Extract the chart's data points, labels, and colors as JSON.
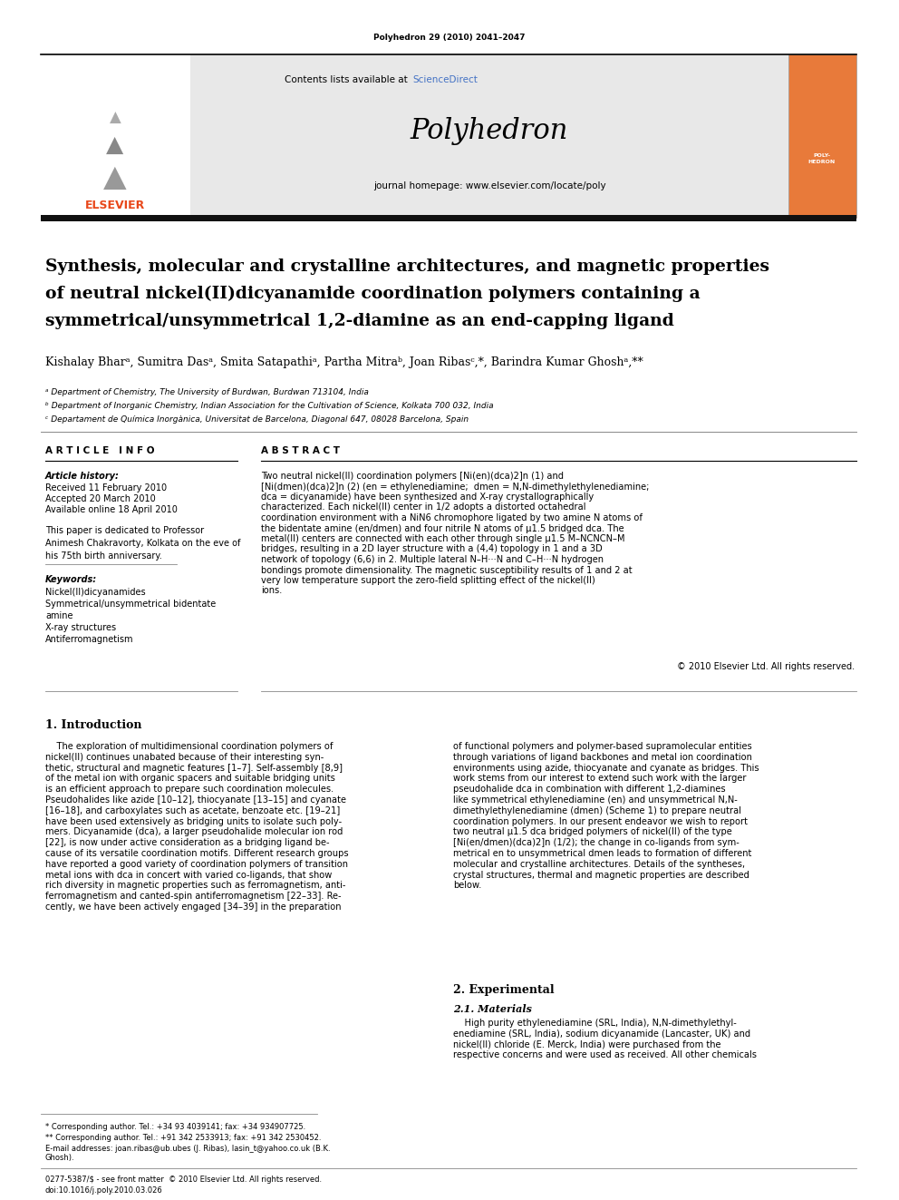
{
  "page_width": 9.92,
  "page_height": 13.23,
  "bg_color": "#ffffff",
  "journal_ref": "Polyhedron 29 (2010) 2041–2047",
  "contents_text": "Contents lists available at ",
  "sciencedirect_text": "ScienceDirect",
  "sciencedirect_color": "#4472c4",
  "journal_name": "Polyhedron",
  "journal_homepage": "journal homepage: www.elsevier.com/locate/poly",
  "header_bg": "#e8e8e8",
  "orange_box_color": "#e87a3a",
  "title_line1": "Synthesis, molecular and crystalline architectures, and magnetic properties",
  "title_line2": "of neutral nickel(II)dicyanamide coordination polymers containing a",
  "title_line3": "symmetrical/unsymmetrical 1,2-diamine as an end-capping ligand",
  "authors": "Kishalay Bharᵃ, Sumitra Dasᵃ, Smita Satapathiᵃ, Partha Mitraᵇ, Joan Ribasᶜ,*, Barindra Kumar Ghoshᵃ,**",
  "affiliation_a": "ᵃ Department of Chemistry, The University of Burdwan, Burdwan 713104, India",
  "affiliation_b": "ᵇ Department of Inorganic Chemistry, Indian Association for the Cultivation of Science, Kolkata 700 032, India",
  "affiliation_c": "ᶜ Departament de Química Inorgànica, Universitat de Barcelona, Diagonal 647, 08028 Barcelona, Spain",
  "article_info_header": "A R T I C L E   I N F O",
  "abstract_header": "A B S T R A C T",
  "article_history_label": "Article history:",
  "received": "Received 11 February 2010",
  "accepted": "Accepted 20 March 2010",
  "available": "Available online 18 April 2010",
  "dedication": "This paper is dedicated to Professor\nAnimesh Chakravorty, Kolkata on the eve of\nhis 75th birth anniversary.",
  "keywords_label": "Keywords:",
  "keywords_list": [
    "Nickel(II)dicyanamides",
    "Symmetrical/unsymmetrical bidentate",
    "amine",
    "X-ray structures",
    "Antiferromagnetism"
  ],
  "abstract_text": "Two neutral nickel(II) coordination polymers [Ni(en)(dca)2]n (1) and [Ni(dmen)(dca)2]n (2) (en = ethylenediamine;  dmen = N,N-dimethylethylenediamine;  dca = dicyanamide) have been synthesized and X-ray crystallographically characterized. Each nickel(II) center in 1/2 adopts a distorted octahedral coordination environment with a NiN6 chromophore ligated by two amine N atoms of the bidentate amine (en/dmen) and four nitrile N atoms of μ1.5 bridged dca. The metal(II) centers are connected with each other through single μ1.5 M–NCNCN–M bridges, resulting in a 2D layer structure with a (4,4) topology in 1 and a 3D network of topology (6,6) in 2. Multiple lateral N–H···N and C–H···N hydrogen bondings promote dimensionality. The magnetic susceptibility results of 1 and 2 at very low temperature support the zero-field splitting effect of the nickel(II) ions.",
  "copyright": "© 2010 Elsevier Ltd. All rights reserved.",
  "intro_heading": "1. Introduction",
  "intro_col1_lines": [
    "    The exploration of multidimensional coordination polymers of",
    "nickel(II) continues unabated because of their interesting syn-",
    "thetic, structural and magnetic features [1–7]. Self-assembly [8,9]",
    "of the metal ion with organic spacers and suitable bridging units",
    "is an efficient approach to prepare such coordination molecules.",
    "Pseudohalides like azide [10–12], thiocyanate [13–15] and cyanate",
    "[16–18], and carboxylates such as acetate, benzoate etc. [19–21]",
    "have been used extensively as bridging units to isolate such poly-",
    "mers. Dicyanamide (dca), a larger pseudohalide molecular ion rod",
    "[22], is now under active consideration as a bridging ligand be-",
    "cause of its versatile coordination motifs. Different research groups",
    "have reported a good variety of coordination polymers of transition",
    "metal ions with dca in concert with varied co-ligands, that show",
    "rich diversity in magnetic properties such as ferromagnetism, anti-",
    "ferromagnetism and canted-spin antiferromagnetism [22–33]. Re-",
    "cently, we have been actively engaged [34–39] in the preparation"
  ],
  "intro_col2_lines": [
    "of functional polymers and polymer-based supramolecular entities",
    "through variations of ligand backbones and metal ion coordination",
    "environments using azide, thiocyanate and cyanate as bridges. This",
    "work stems from our interest to extend such work with the larger",
    "pseudohalide dca in combination with different 1,2-diamines",
    "like symmetrical ethylenediamine (en) and unsymmetrical N,N-",
    "dimethylethylenediamine (dmen) (Scheme 1) to prepare neutral",
    "coordination polymers. In our present endeavor we wish to report",
    "two neutral μ1.5 dca bridged polymers of nickel(II) of the type",
    "[Ni(en/dmen)(dca)2]n (1/2); the change in co-ligands from sym-",
    "metrical en to unsymmetrical dmen leads to formation of different",
    "molecular and crystalline architectures. Details of the syntheses,",
    "crystal structures, thermal and magnetic properties are described",
    "below."
  ],
  "section2_heading": "2. Experimental",
  "section21_heading": "2.1. Materials",
  "materials_col2_lines": [
    "    High purity ethylenediamine (SRL, India), N,N-dimethylethyl-",
    "enediamine (SRL, India), sodium dicyanamide (Lancaster, UK) and",
    "nickel(II) chloride (E. Merck, India) were purchased from the",
    "respective concerns and were used as received. All other chemicals"
  ],
  "footnote_star": "* Corresponding author. Tel.: +34 93 4039141; fax: +34 934907725.",
  "footnote_2star": "** Corresponding author. Tel.: +91 342 2533913; fax: +91 342 2530452.",
  "footnote_email": "E-mail addresses: joan.ribas@ub.ubes (J. Ribas), lasin_t@yahoo.co.uk (B.K.",
  "footnote_email2": "Ghosh).",
  "footer_issn": "0277-5387/$ - see front matter  © 2010 Elsevier Ltd. All rights reserved.",
  "footer_doi": "doi:10.1016/j.poly.2010.03.026"
}
